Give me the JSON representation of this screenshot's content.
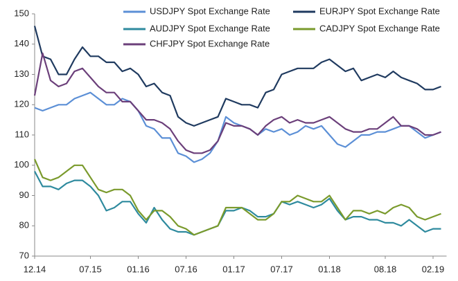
{
  "chart_data": {
    "type": "line",
    "categories": [
      "12.14",
      null,
      null,
      null,
      null,
      null,
      null,
      "07.15",
      null,
      null,
      null,
      null,
      null,
      "01.16",
      null,
      null,
      null,
      null,
      null,
      "07.16",
      null,
      null,
      null,
      null,
      null,
      "01.17",
      null,
      null,
      null,
      null,
      null,
      "07.17",
      null,
      null,
      null,
      null,
      null,
      "01.18",
      null,
      null,
      null,
      null,
      null,
      null,
      "08.18",
      null,
      null,
      null,
      null,
      null,
      "02.19",
      null
    ],
    "series": [
      {
        "name": "USDJPY Spot Exchange Rate",
        "color": "#5b8fd6",
        "values": [
          119,
          118,
          119,
          120,
          120,
          122,
          123,
          124,
          122,
          120,
          120,
          122,
          121,
          118,
          113,
          112,
          109,
          109,
          104,
          103,
          101,
          102,
          104,
          108,
          116,
          114,
          113,
          112,
          110,
          112,
          111,
          112,
          110,
          111,
          113,
          112,
          113,
          110,
          107,
          106,
          108,
          110,
          110,
          111,
          111,
          112,
          113,
          113,
          111,
          109,
          110,
          111
        ]
      },
      {
        "name": "EURJPY Spot Exchange Rate",
        "color": "#1f3a5f",
        "values": [
          146,
          136,
          135,
          130,
          130,
          135,
          139,
          136,
          136,
          134,
          134,
          131,
          132,
          130,
          126,
          127,
          124,
          123,
          116,
          114,
          113,
          114,
          115,
          116,
          122,
          121,
          120,
          120,
          119,
          124,
          125,
          130,
          131,
          132,
          132,
          132,
          134,
          135,
          133,
          131,
          132,
          128,
          129,
          130,
          129,
          131,
          129,
          128,
          127,
          125,
          125,
          126
        ]
      },
      {
        "name": "AUDJPY Spot Exchange Rate",
        "color": "#2e8a9e",
        "values": [
          98,
          93,
          93,
          92,
          94,
          95,
          95,
          93,
          90,
          85,
          86,
          88,
          88,
          84,
          81,
          86,
          82,
          79,
          78,
          78,
          77,
          78,
          79,
          80,
          85,
          85,
          86,
          85,
          83,
          83,
          84,
          88,
          87,
          88,
          87,
          86,
          87,
          89,
          85,
          82,
          83,
          83,
          82,
          82,
          81,
          81,
          80,
          82,
          80,
          78,
          79,
          79
        ]
      },
      {
        "name": "CADJPY Spot Exchange Rate",
        "color": "#7a9a2c",
        "values": [
          102,
          96,
          95,
          96,
          98,
          100,
          100,
          96,
          92,
          91,
          92,
          92,
          90,
          85,
          82,
          85,
          85,
          83,
          80,
          79,
          77,
          78,
          79,
          80,
          86,
          86,
          86,
          84,
          82,
          82,
          84,
          88,
          88,
          90,
          89,
          88,
          88,
          90,
          86,
          82,
          85,
          85,
          84,
          85,
          84,
          86,
          87,
          86,
          83,
          82,
          83,
          84
        ]
      },
      {
        "name": "CHFJPY Spot Exchange Rate",
        "color": "#6b3f7a",
        "values": [
          123,
          137,
          128,
          126,
          127,
          131,
          132,
          129,
          126,
          124,
          124,
          121,
          121,
          118,
          115,
          115,
          114,
          112,
          108,
          105,
          104,
          104,
          105,
          108,
          114,
          113,
          113,
          112,
          110,
          113,
          115,
          116,
          114,
          115,
          114,
          114,
          115,
          116,
          114,
          112,
          111,
          111,
          112,
          112,
          114,
          116,
          113,
          113,
          112,
          110,
          110,
          111
        ]
      }
    ],
    "ylim": [
      70,
      150
    ],
    "yticks": [
      70,
      80,
      90,
      100,
      110,
      120,
      130,
      140,
      150
    ],
    "grid": false,
    "legend": "top"
  }
}
